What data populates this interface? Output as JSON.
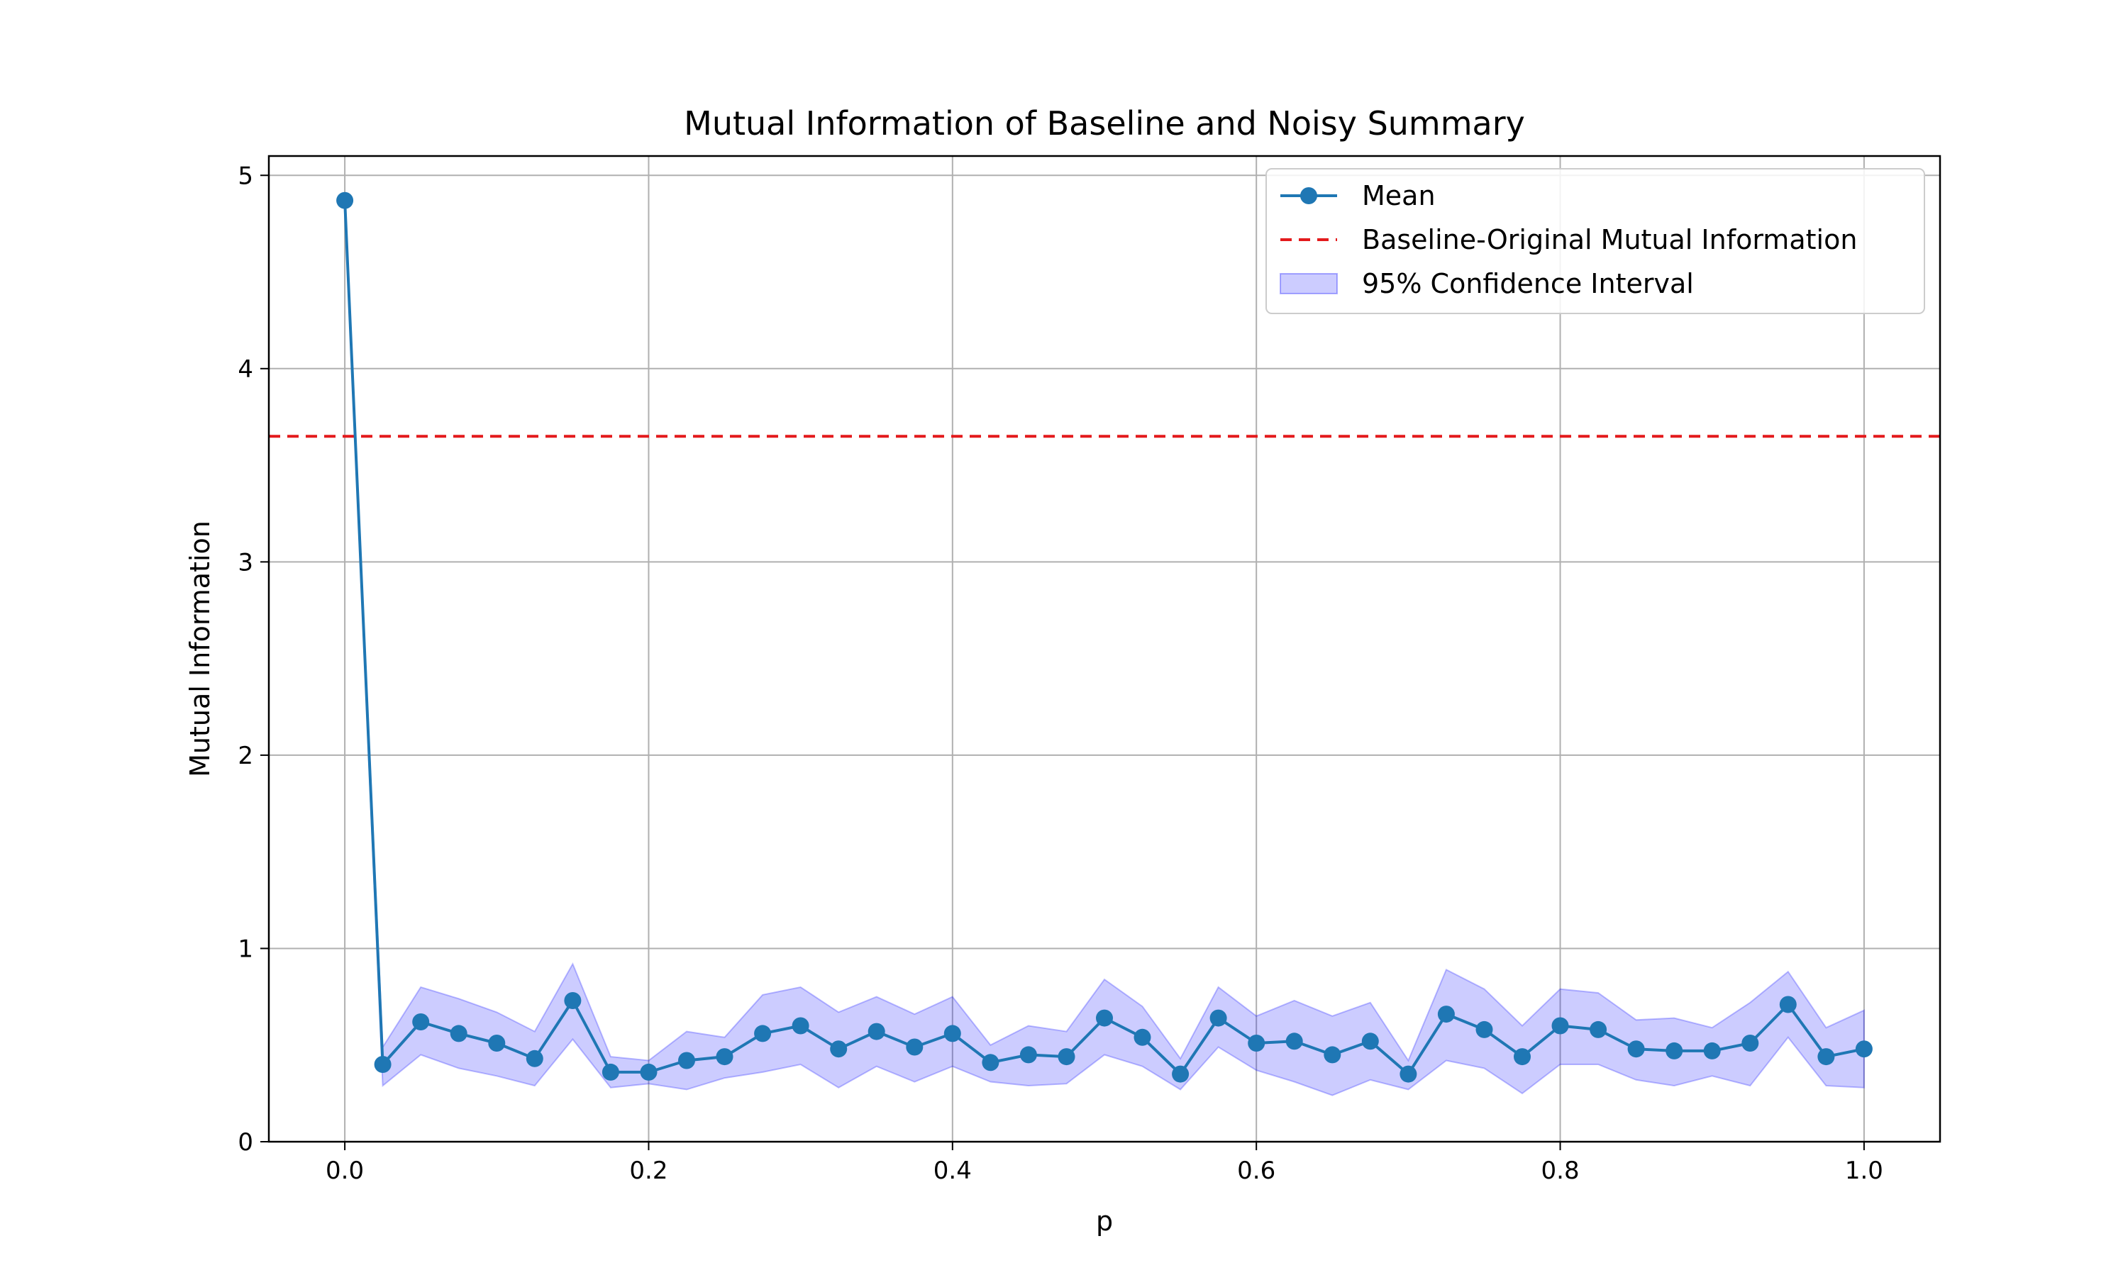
{
  "chart_data": {
    "type": "line",
    "title": "Mutual Information of Baseline and Noisy Summary",
    "xlabel": "p",
    "ylabel": "Mutual Information",
    "xlim": [
      -0.05,
      1.05
    ],
    "ylim": [
      0,
      5.1
    ],
    "xticks": [
      "0.0",
      "0.2",
      "0.4",
      "0.6",
      "0.8",
      "1.0"
    ],
    "yticks": [
      "0",
      "1",
      "2",
      "3",
      "4",
      "5"
    ],
    "grid": true,
    "legend_position": "top-right",
    "x": [
      0.0,
      0.025,
      0.05,
      0.075,
      0.1,
      0.125,
      0.15,
      0.175,
      0.2,
      0.225,
      0.25,
      0.275,
      0.3,
      0.325,
      0.35,
      0.375,
      0.4,
      0.425,
      0.45,
      0.475,
      0.5,
      0.525,
      0.55,
      0.575,
      0.6,
      0.625,
      0.65,
      0.675,
      0.7,
      0.725,
      0.75,
      0.775,
      0.8,
      0.825,
      0.85,
      0.875,
      0.9,
      0.925,
      0.95,
      0.975,
      1.0
    ],
    "series": [
      {
        "name": "Mean",
        "color": "#1f77b4",
        "values": [
          4.87,
          0.4,
          0.62,
          0.56,
          0.51,
          0.43,
          0.73,
          0.36,
          0.36,
          0.42,
          0.44,
          0.56,
          0.6,
          0.48,
          0.57,
          0.49,
          0.56,
          0.41,
          0.45,
          0.44,
          0.64,
          0.54,
          0.35,
          0.64,
          0.51,
          0.52,
          0.45,
          0.52,
          0.35,
          0.66,
          0.58,
          0.44,
          0.6,
          0.58,
          0.48,
          0.47,
          0.47,
          0.51,
          0.71,
          0.44,
          0.48
        ],
        "ci_lower": [
          4.87,
          0.29,
          0.45,
          0.38,
          0.34,
          0.29,
          0.53,
          0.28,
          0.3,
          0.27,
          0.33,
          0.36,
          0.4,
          0.28,
          0.39,
          0.31,
          0.39,
          0.31,
          0.29,
          0.3,
          0.45,
          0.39,
          0.27,
          0.49,
          0.37,
          0.31,
          0.24,
          0.32,
          0.27,
          0.42,
          0.38,
          0.25,
          0.4,
          0.4,
          0.32,
          0.29,
          0.34,
          0.29,
          0.54,
          0.29,
          0.28
        ],
        "ci_upper": [
          4.87,
          0.49,
          0.8,
          0.74,
          0.67,
          0.57,
          0.92,
          0.44,
          0.42,
          0.57,
          0.54,
          0.76,
          0.8,
          0.67,
          0.75,
          0.66,
          0.75,
          0.5,
          0.6,
          0.57,
          0.84,
          0.7,
          0.43,
          0.8,
          0.65,
          0.73,
          0.65,
          0.72,
          0.42,
          0.89,
          0.79,
          0.6,
          0.79,
          0.77,
          0.63,
          0.64,
          0.59,
          0.72,
          0.88,
          0.59,
          0.68
        ]
      }
    ],
    "baseline": {
      "name": "Baseline-Original Mutual Information",
      "value": 3.65,
      "color": "#e31a1c"
    },
    "ci_band": {
      "name": "95% Confidence Interval",
      "color": "#0000ff"
    }
  }
}
